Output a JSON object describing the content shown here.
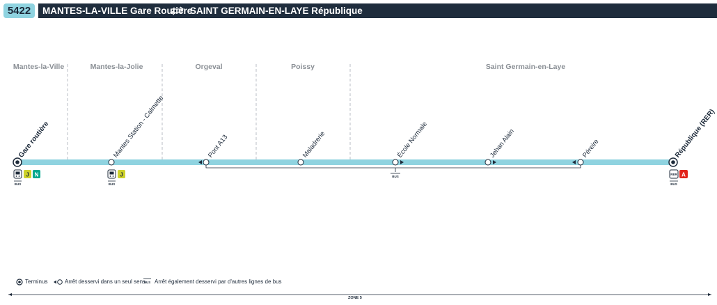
{
  "header": {
    "line_number": "5422",
    "origin": "MANTES-LA-VILLE Gare Routière",
    "destination": "SAINT GERMAIN-EN-LAYE République"
  },
  "zones": [
    {
      "label": "Mantes-la-Ville"
    },
    {
      "label": "Mantes-la-Jolie"
    },
    {
      "label": "Orgeval"
    },
    {
      "label": "Poissy"
    },
    {
      "label": "Saint Germain-en-Laye"
    }
  ],
  "stops": [
    {
      "name": "Gare routière",
      "terminus": true,
      "connections": [
        "train",
        "J",
        "N"
      ],
      "bus": true
    },
    {
      "name": "Mantes Station - Calmette",
      "terminus": false,
      "connections": [
        "train",
        "J"
      ],
      "bus": true
    },
    {
      "name": "Pont A13",
      "terminus": false,
      "connections": [],
      "bus": false,
      "direction": "left"
    },
    {
      "name": "Maladrerie",
      "terminus": false,
      "connections": [],
      "bus": false
    },
    {
      "name": "École Normale",
      "terminus": false,
      "connections": [],
      "bus": true,
      "direction": "right"
    },
    {
      "name": "Jehan Alain",
      "terminus": false,
      "connections": [],
      "bus": false,
      "direction": "right"
    },
    {
      "name": "Péreire",
      "terminus": false,
      "connections": [],
      "bus": false,
      "direction": "left"
    },
    {
      "name": "République (RER)",
      "terminus": true,
      "connections": [
        "RER",
        "A"
      ],
      "bus": true
    }
  ],
  "icons": {
    "bus_label": "BUS",
    "train_label": "",
    "rer_label": "RER",
    "line_J": "J",
    "line_N": "N",
    "line_A": "A"
  },
  "colors": {
    "line": "#8fd3e0",
    "header_bg": "#1f2d3d",
    "J": "#cdd12a",
    "N": "#00a88f",
    "A": "#e2231a",
    "zone_text": "#8a8f95"
  },
  "legend": {
    "terminus": "Terminus",
    "one_way": "Arrêt desservi dans un seul sens",
    "other_lines": "Arrêt également desservi par d'autres lignes de bus"
  },
  "fare_zone": "ZONE 5"
}
